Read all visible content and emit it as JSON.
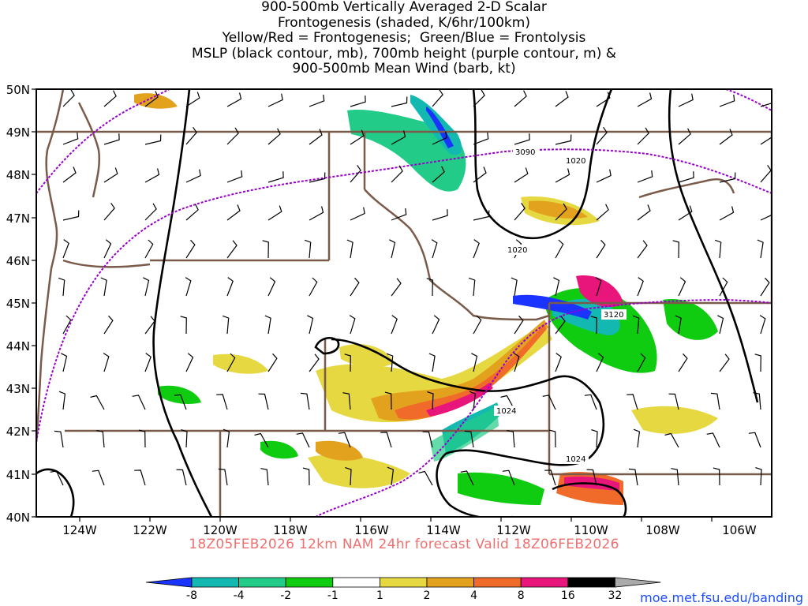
{
  "title_lines": [
    "900-500mb Vertically Averaged 2-D Scalar",
    "Frontogenesis (shaded, K/6hr/100km)",
    "Yellow/Red = Frontogenesis;  Green/Blue = Frontolysis",
    "MSLP (black contour, mb), 700mb height (purple contour, m) &",
    "900-500mb Mean Wind (barb, kt)"
  ],
  "map": {
    "lat_labels": [
      "50N",
      "49N",
      "48N",
      "47N",
      "46N",
      "45N",
      "44N",
      "43N",
      "42N",
      "41N",
      "40N"
    ],
    "lon_labels": [
      "124W",
      "122W",
      "120W",
      "118W",
      "116W",
      "114W",
      "112W",
      "110W",
      "108W",
      "106W"
    ],
    "contour_labels": {
      "height": [
        "3090",
        "3120"
      ],
      "mslp": [
        "1020",
        "1020",
        "1024",
        "1024"
      ]
    },
    "colors": {
      "border": "#7a5a48",
      "mslp": "#000000",
      "height": "#9900cc"
    }
  },
  "valid_line": "18Z05FEB2026 12km NAM 24hr forecast Valid 18Z06FEB2026",
  "colorbar": {
    "labels": [
      "-8",
      "-4",
      "-2",
      "-1",
      "1",
      "2",
      "4",
      "8",
      "16",
      "32"
    ],
    "colors": [
      "#1a33ff",
      "#13b8b0",
      "#22cc88",
      "#10cc10",
      "#ffffff",
      "#e6d840",
      "#e3a21e",
      "#f06a2a",
      "#e8167a",
      "#000000"
    ],
    "over_color": "#aaaaaa"
  },
  "credit": "moe.met.fsu.edu/banding"
}
